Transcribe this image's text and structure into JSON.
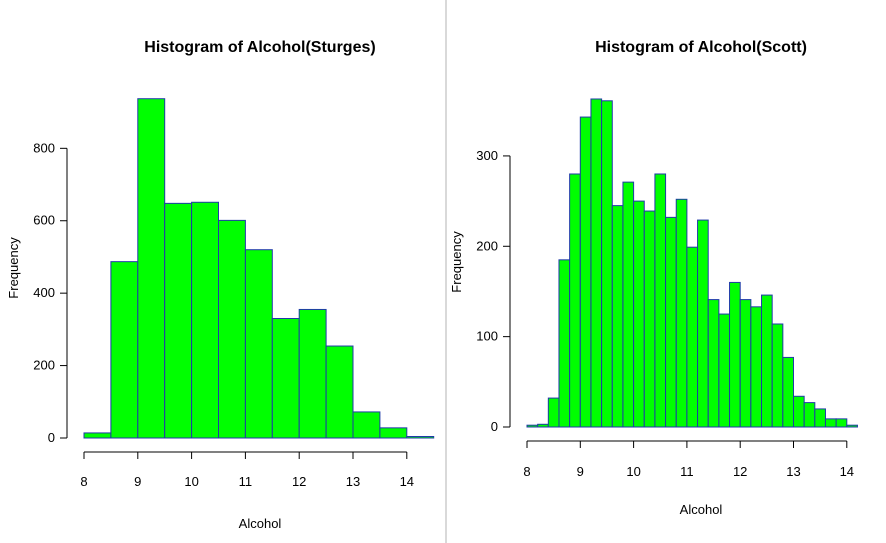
{
  "chart_data": [
    {
      "type": "bar",
      "title": "Histogram of Alcohol(Sturges)",
      "xlabel": "Alcohol",
      "ylabel": "Frequency",
      "bin_edges": [
        8,
        8.5,
        9,
        9.5,
        10,
        10.5,
        11,
        11.5,
        12,
        12.5,
        13,
        13.5,
        14,
        14.5
      ],
      "values": [
        14,
        487,
        937,
        648,
        651,
        601,
        520,
        330,
        355,
        254,
        72,
        28,
        1
      ],
      "xlim": [
        8,
        14.5
      ],
      "ylim": [
        0,
        937
      ],
      "x_ticks": [
        8,
        9,
        10,
        11,
        12,
        13,
        14
      ],
      "y_ticks": [
        0,
        200,
        400,
        600,
        800
      ],
      "bar_color": "#00ff00",
      "edge_color": "#1f3aa8"
    },
    {
      "type": "bar",
      "title": "Histogram of Alcohol(Scott)",
      "xlabel": "Alcohol",
      "ylabel": "Frequency",
      "bin_edges": [
        8,
        8.2,
        8.4,
        8.6,
        8.8,
        9,
        9.2,
        9.4,
        9.6,
        9.8,
        10,
        10.2,
        10.4,
        10.6,
        10.8,
        11,
        11.2,
        11.4,
        11.6,
        11.8,
        12,
        12.2,
        12.4,
        12.6,
        12.8,
        13,
        13.2,
        13.4,
        13.6,
        13.8,
        14,
        14.2
      ],
      "values": [
        2,
        3,
        32,
        185,
        280,
        343,
        363,
        361,
        245,
        271,
        250,
        239,
        280,
        232,
        252,
        199,
        229,
        141,
        125,
        160,
        141,
        133,
        146,
        114,
        77,
        34,
        27,
        20,
        9,
        9,
        2
      ],
      "xlim": [
        8,
        14.2
      ],
      "ylim": [
        0,
        363
      ],
      "x_ticks": [
        8,
        9,
        10,
        11,
        12,
        13,
        14
      ],
      "y_ticks": [
        0,
        100,
        200,
        300
      ],
      "bar_color": "#00ff00",
      "edge_color": "#1f3aa8"
    }
  ]
}
